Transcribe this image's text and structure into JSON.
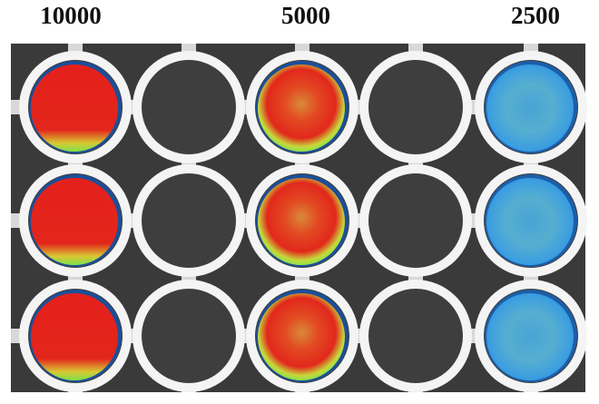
{
  "column_labels": [
    "10000",
    "5000",
    "2500"
  ]
}
